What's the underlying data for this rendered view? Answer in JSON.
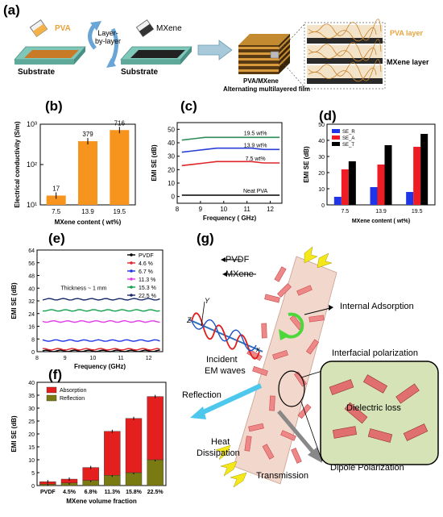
{
  "panel_a": {
    "letter": "(a)",
    "pva_label": "PVA",
    "mxene_label": "MXene",
    "lbl_label": "Layer-\nby-layer",
    "substrate1": "Substrate",
    "substrate2": "Substrate",
    "film_caption1": "PVA/MXene",
    "film_caption2": "Alternating multilayered film",
    "pva_layer": "PVA layer",
    "mxene_layer": "MXene layer",
    "colors": {
      "pva": "#e8a33c",
      "mxene": "#222222",
      "substrate": "#7fc7b9"
    }
  },
  "panels": {
    "b": "(b)",
    "c": "(c)",
    "d": "(d)",
    "e": "(e)",
    "f": "(f)",
    "g": "(g)"
  },
  "chart_data": [
    {
      "id": "b",
      "type": "bar",
      "categories": [
        "7.5",
        "13.9",
        "19.5"
      ],
      "values": [
        17,
        379,
        716
      ],
      "data_labels": [
        "17",
        "379",
        "716"
      ],
      "ylabel": "Electrical conductivity (S/m)",
      "xlabel": "MXene content ( wt%)",
      "yscale": "log",
      "ylim": [
        10,
        1000
      ],
      "yticks": [
        "10¹",
        "10²",
        "10³"
      ],
      "color": "#f7941d"
    },
    {
      "id": "c",
      "type": "line",
      "xlabel": "Frequency ( GHz)",
      "ylabel": "EMI SE (dB)",
      "xlim": [
        8,
        12.5
      ],
      "ylim": [
        -5,
        55
      ],
      "xticks": [
        8,
        9,
        10,
        11,
        12
      ],
      "yticks": [
        0,
        10,
        20,
        30,
        40,
        50
      ],
      "x": [
        8.2,
        8.7,
        9.2,
        9.7,
        10.2,
        10.7,
        11.2,
        11.7,
        12.4
      ],
      "series": [
        {
          "name": "19.5 wt%",
          "values": [
            42,
            43,
            44,
            44,
            44,
            44,
            44,
            44,
            44
          ],
          "color": "#2e8b57"
        },
        {
          "name": "13.9 wt%",
          "values": [
            33,
            34,
            35,
            36,
            36,
            36,
            36,
            35,
            35
          ],
          "color": "#2b3fd6"
        },
        {
          "name": "7.5 wt%",
          "values": [
            23,
            24,
            25,
            26,
            26,
            26,
            26,
            25,
            25
          ],
          "color": "#e0252a"
        },
        {
          "name": "Neat PVA",
          "values": [
            1,
            1,
            1,
            1,
            1,
            1,
            1,
            1,
            1
          ],
          "color": "#000000"
        }
      ]
    },
    {
      "id": "d",
      "type": "bar",
      "categories": [
        "7.5",
        "13.9",
        "19.5"
      ],
      "xlabel": "MXene content ( wt%)",
      "ylabel": "EMI SE (dB)",
      "ylim": [
        0,
        50
      ],
      "yticks": [
        0,
        10,
        20,
        30,
        40,
        50
      ],
      "series": [
        {
          "name": "SE_R",
          "values": [
            5,
            11,
            8
          ],
          "color": "#1f35e8"
        },
        {
          "name": "SE_A",
          "values": [
            22,
            25,
            36
          ],
          "color": "#ee1c24"
        },
        {
          "name": "SE_T",
          "values": [
            27,
            37,
            44
          ],
          "color": "#000000"
        }
      ],
      "legend": [
        "SE_R",
        "SE_A",
        "SE_T"
      ]
    },
    {
      "id": "e",
      "type": "line",
      "xlabel": "Frequency (GHz)",
      "ylabel": "EMI SE (dB)",
      "annotation": "Thickness ~ 1 mm",
      "xlim": [
        8,
        12.5
      ],
      "ylim": [
        0,
        64
      ],
      "xticks": [
        8,
        9,
        10,
        11,
        12
      ],
      "yticks": [
        0,
        8,
        16,
        24,
        32,
        40,
        48,
        56,
        64
      ],
      "series": [
        {
          "name": "PVDF",
          "value": 0.5,
          "color": "#000000"
        },
        {
          "name": "4.6  %",
          "value": 1.5,
          "color": "#e0252a"
        },
        {
          "name": "6.7  %",
          "value": 7,
          "color": "#1f35e8"
        },
        {
          "name": "11.3 %",
          "value": 19,
          "color": "#e23be8"
        },
        {
          "name": "15.3 %",
          "value": 26,
          "color": "#12a14a"
        },
        {
          "name": "22.5 %",
          "value": 33,
          "color": "#1a2b6b"
        }
      ]
    },
    {
      "id": "f",
      "type": "bar",
      "stacked": true,
      "categories": [
        "PVDF",
        "4.5%",
        "6.8%",
        "11.3%",
        "15.8%",
        "22.5%"
      ],
      "xlabel": "MXene volume fraction",
      "ylabel": "EMI SE (dB)",
      "ylim": [
        0,
        40
      ],
      "yticks": [
        0,
        5,
        10,
        15,
        20,
        25,
        30,
        35,
        40
      ],
      "series": [
        {
          "name": "Reflection",
          "values": [
            0.5,
            1,
            2,
            4,
            5,
            10
          ],
          "color": "#7a7a12"
        },
        {
          "name": "Absorption",
          "values": [
            1,
            1.5,
            5,
            17,
            21,
            24.5
          ],
          "color": "#e3201e"
        }
      ]
    }
  ],
  "panel_g": {
    "pvdf": "PVDF",
    "mxene": "MXene",
    "internal_adsorption": "Internal Adsorption",
    "incident1": "Incident",
    "incident2": "EM waves",
    "interfacial": "Interfacial polarization",
    "dielectric": "Dielectric loss",
    "reflection": "Reflection",
    "heat1": "Heat",
    "heat2": "Dissipation",
    "transmission": "Transmission",
    "dipole": "Dipole Polarization",
    "axis_y": "Y",
    "axis_z": "Z",
    "axis_x": "x"
  }
}
